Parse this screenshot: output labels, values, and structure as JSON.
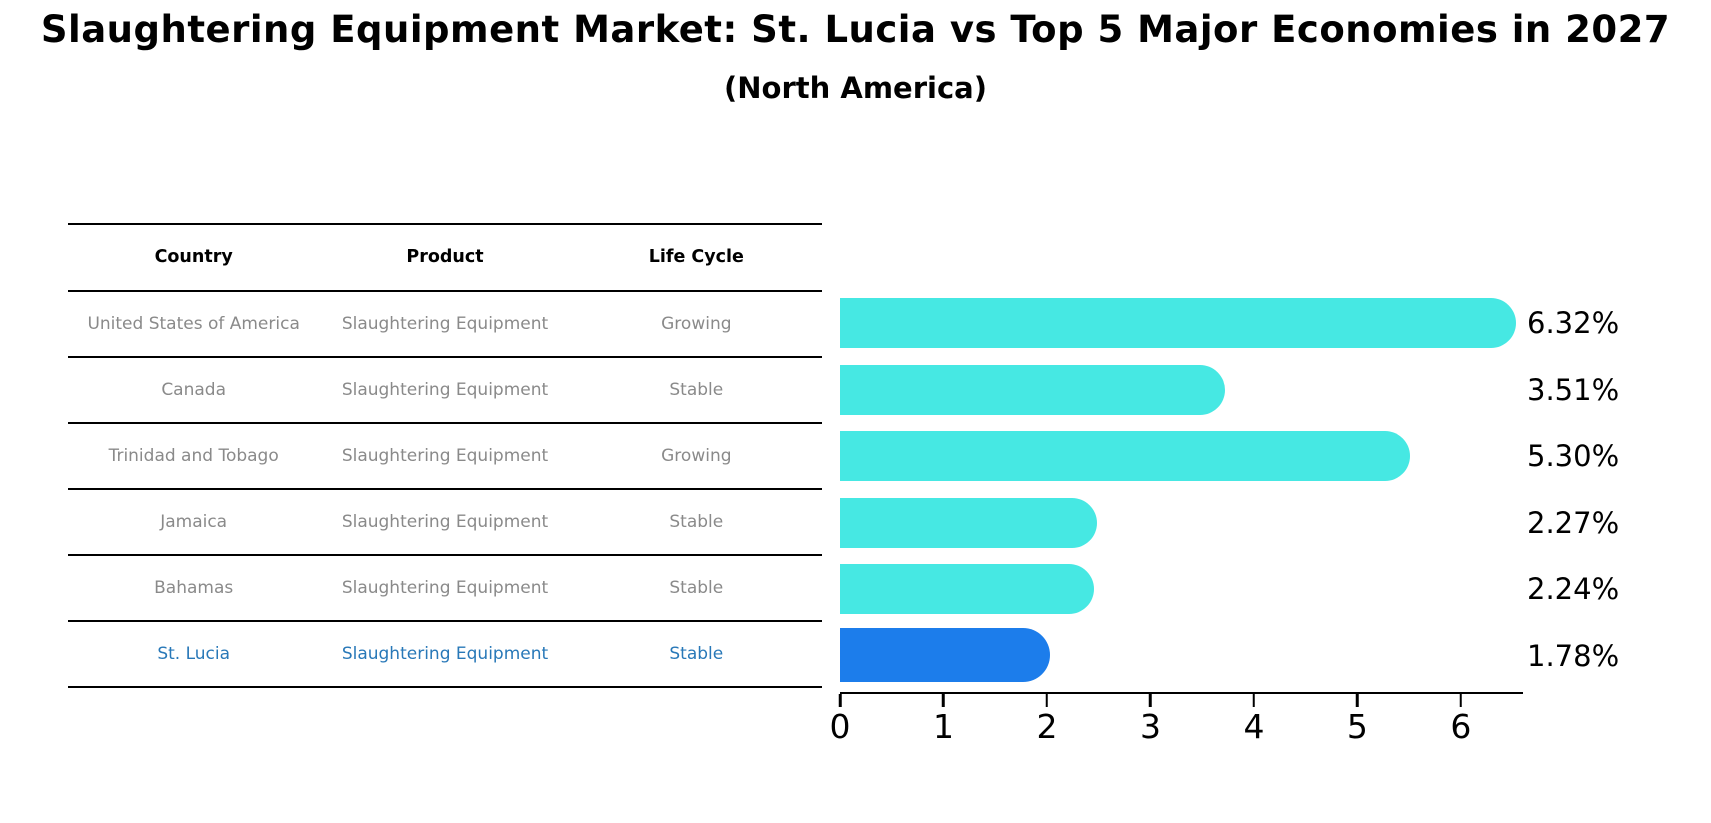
{
  "title": "Slaughtering Equipment Market: St. Lucia vs Top 5 Major Economies in 2027",
  "subtitle": "(North America)",
  "table": {
    "headers": [
      "Country",
      "Product",
      "Life Cycle"
    ],
    "rows": [
      {
        "country": "United States of America",
        "product": "Slaughtering Equipment",
        "life_cycle": "Growing",
        "highlight": false
      },
      {
        "country": "Canada",
        "product": "Slaughtering Equipment",
        "life_cycle": "Stable",
        "highlight": false
      },
      {
        "country": "Trinidad and Tobago",
        "product": "Slaughtering Equipment",
        "life_cycle": "Growing",
        "highlight": false
      },
      {
        "country": "Jamaica",
        "product": "Slaughtering Equipment",
        "life_cycle": "Stable",
        "highlight": false
      },
      {
        "country": "Bahamas",
        "product": "Slaughtering Equipment",
        "life_cycle": "Stable",
        "highlight": false
      },
      {
        "country": "St. Lucia",
        "product": "Slaughtering Equipment",
        "life_cycle": "Stable",
        "highlight": true
      }
    ]
  },
  "chart_data": {
    "type": "bar",
    "orientation": "horizontal",
    "categories": [
      "United States of America",
      "Canada",
      "Trinidad and Tobago",
      "Jamaica",
      "Bahamas",
      "St. Lucia"
    ],
    "values": [
      6.32,
      3.51,
      5.3,
      2.27,
      2.24,
      1.78
    ],
    "value_labels": [
      "6.32%",
      "3.51%",
      "5.30%",
      "2.27%",
      "2.24%",
      "1.78%"
    ],
    "xlim": [
      0,
      6.6
    ],
    "tick_values": [
      0,
      1,
      2,
      3,
      4,
      5,
      6
    ],
    "tick_labels": [
      "0",
      "1",
      "2",
      "3",
      "4",
      "5",
      "6"
    ],
    "grid": false,
    "legend": false,
    "bar_color": "#46e8e3",
    "highlight_bar_color": "#1c7deb",
    "highlight_index": 5,
    "highlight_text_color": "#2878b8"
  }
}
